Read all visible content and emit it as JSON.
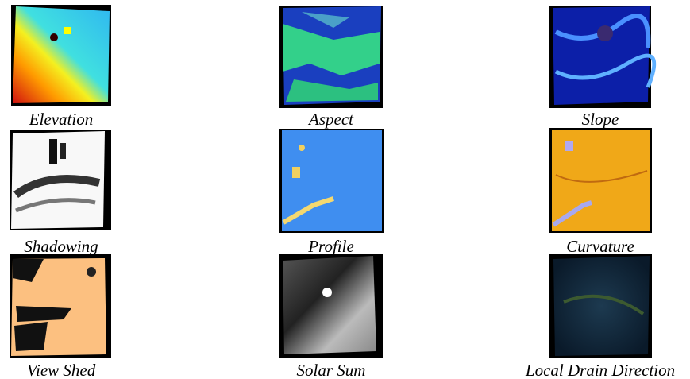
{
  "panels": [
    {
      "label": "Elevation"
    },
    {
      "label": "Aspect"
    },
    {
      "label": "Slope"
    },
    {
      "label": "Shadowing"
    },
    {
      "label": "Profile"
    },
    {
      "label": "Curvature"
    },
    {
      "label": "View Shed"
    },
    {
      "label": "Solar Sum"
    },
    {
      "label": "Local Drain Direction"
    }
  ]
}
